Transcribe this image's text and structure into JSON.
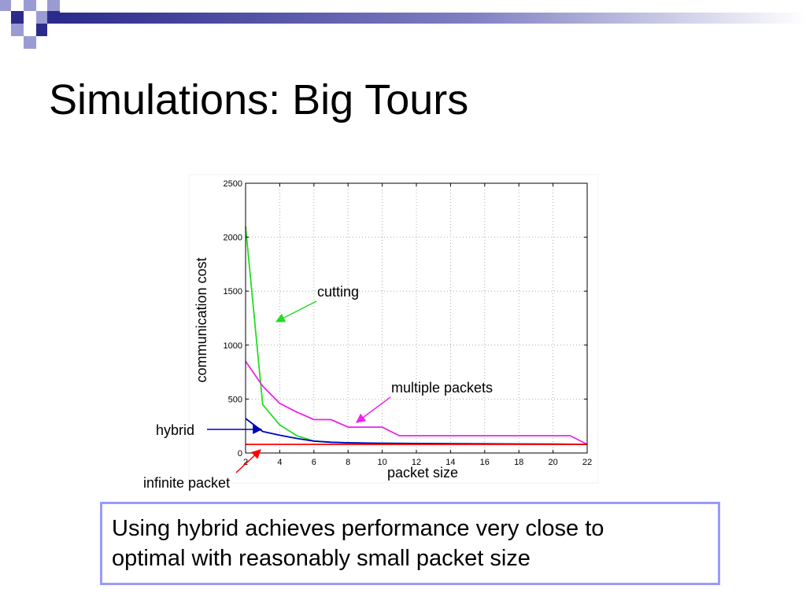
{
  "slide": {
    "title": "Simulations: Big Tours",
    "summary_lines": [
      "Using hybrid achieves performance very close to",
      "optimal with reasonably small packet size"
    ]
  },
  "annotations": {
    "cutting": "cutting",
    "multiple_packets": "multiple packets",
    "hybrid": "hybrid",
    "infinite_packet": "infinite packet"
  },
  "colors": {
    "cutting": "#22dd22",
    "multiple_packets": "#ee22ee",
    "hybrid": "#0000bb",
    "infinite_packet": "#ff0000",
    "deco_dark": "#2b2b8c",
    "deco_light": "#9b9bd4",
    "box_border": "#9999ff"
  },
  "chart_data": {
    "type": "line",
    "title": "",
    "xlabel": "packet size",
    "ylabel": "communication cost",
    "xlim": [
      2,
      22
    ],
    "ylim": [
      0,
      2500
    ],
    "xticks": [
      2,
      4,
      6,
      8,
      10,
      12,
      14,
      16,
      18,
      20,
      22
    ],
    "yticks": [
      0,
      500,
      1000,
      1500,
      2000,
      2500
    ],
    "grid": "dotted",
    "series": [
      {
        "key": "cutting",
        "x": [
          2,
          3,
          4,
          5,
          6,
          7,
          8,
          9,
          10,
          12,
          14,
          16,
          18,
          20,
          22
        ],
        "y": [
          2100,
          450,
          260,
          160,
          110,
          100,
          95,
          92,
          90,
          88,
          86,
          84,
          82,
          80,
          80
        ]
      },
      {
        "key": "multiple_packets",
        "x": [
          2,
          3,
          4,
          5,
          6,
          7,
          8,
          9,
          10,
          11,
          12,
          14,
          16,
          18,
          20,
          21,
          22
        ],
        "y": [
          850,
          620,
          460,
          380,
          310,
          310,
          240,
          240,
          240,
          160,
          160,
          160,
          160,
          160,
          160,
          160,
          80
        ]
      },
      {
        "key": "hybrid",
        "x": [
          2,
          3,
          4,
          5,
          6,
          7,
          8,
          10,
          12,
          14,
          16,
          18,
          20,
          22
        ],
        "y": [
          320,
          200,
          165,
          135,
          110,
          100,
          95,
          90,
          88,
          86,
          85,
          84,
          82,
          80
        ]
      },
      {
        "key": "infinite_packet",
        "x": [
          2,
          22
        ],
        "y": [
          80,
          80
        ]
      }
    ]
  }
}
